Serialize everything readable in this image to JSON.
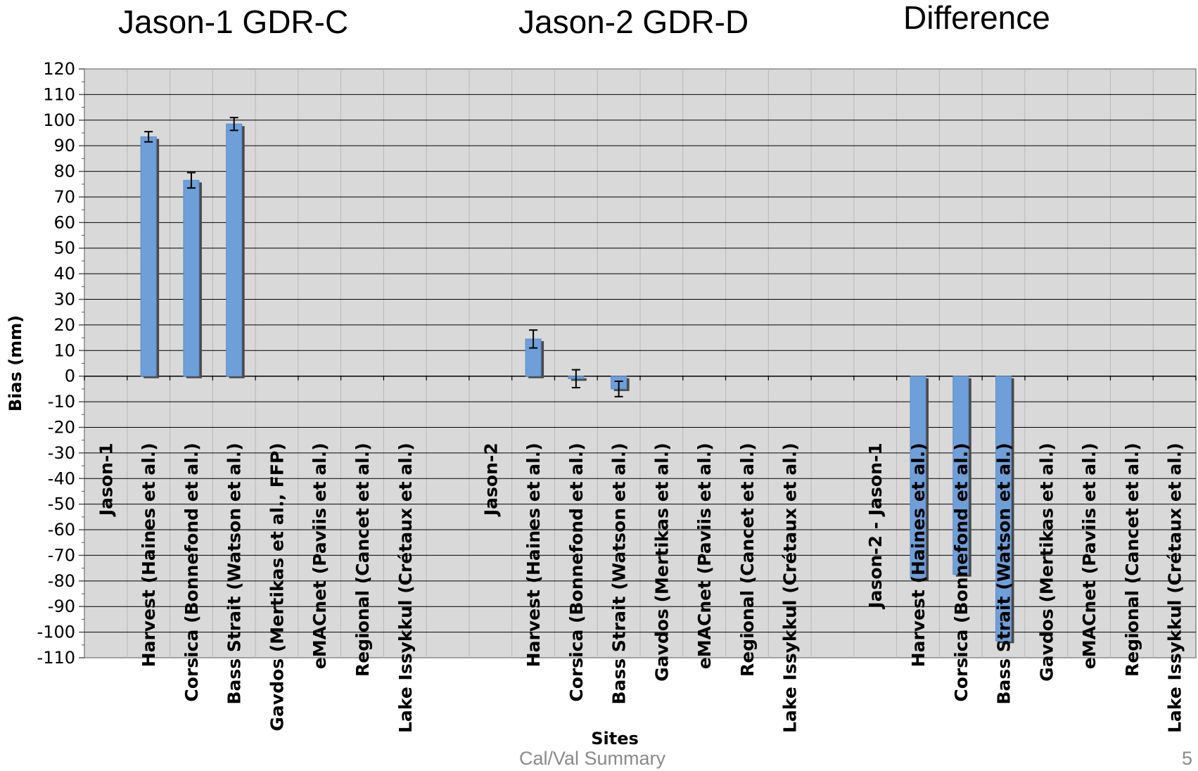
{
  "headings": {
    "jason1": "Jason-1 GDR-C",
    "jason2": "Jason-2 GDR-D",
    "difference": "Difference"
  },
  "chart_data": {
    "type": "bar",
    "xlabel": "Sites",
    "ylabel": "Bias (mm)",
    "ylim": [
      -110,
      120
    ],
    "y_ticks": [
      120,
      110,
      100,
      90,
      80,
      70,
      60,
      50,
      40,
      30,
      20,
      10,
      0,
      -10,
      -20,
      -30,
      -40,
      -50,
      -60,
      -70,
      -80,
      -90,
      -100,
      -110
    ],
    "grid": true,
    "categories": [
      "Jason-1",
      "Harvest (Haines et al.)",
      "Corsica (Bonnefond et al.)",
      "Bass Strait (Watson et al.)",
      "Gavdos (Mertikas et al., FFP)",
      "eMACnet (Paviis et al.)",
      "Regional (Cancet et al.)",
      "Lake Issykkul (Crétaux et al.)",
      "",
      "Jason-2",
      "Harvest (Haines et al.)",
      "Corsica (Bonnefond et al.)",
      "Bass Strait (Watson et al.)",
      "Gavdos (Mertikas et al.)",
      "eMACnet (Paviis et al.)",
      "Regional (Cancet et al.)",
      "Lake Issykkul (Crétaux et al.)",
      "",
      "Jason-2 - Jason-1",
      "Harvest (Haines et al.)",
      "Corsica (Bonnefond et al.)",
      "Bass Strait (Watson et al.)",
      "Gavdos (Mertikas et al.)",
      "eMACnet (Paviis et al.)",
      "Regional (Cancet et al.)",
      "Lake Issykkul (Crétaux et al.)"
    ],
    "values": [
      null,
      93.5,
      76.5,
      98.5,
      null,
      null,
      null,
      null,
      null,
      null,
      14.5,
      -1.0,
      -5.0,
      null,
      null,
      null,
      null,
      null,
      null,
      -79.0,
      -77.5,
      -103.5,
      null,
      null,
      null,
      null
    ],
    "errors": [
      null,
      2.0,
      3.0,
      2.5,
      null,
      null,
      null,
      null,
      null,
      null,
      3.5,
      3.5,
      3.0,
      null,
      null,
      null,
      null,
      null,
      null,
      null,
      null,
      null,
      null,
      null,
      null,
      null
    ],
    "colors": {
      "bar": "#6f9fd8",
      "bar_shadow": "#4a4a4a",
      "plot_bg": "#d9d9d9",
      "grid": "#000000",
      "error_bar": "#000000"
    }
  },
  "footer": {
    "text": "Cal/Val Summary",
    "page_number": "5"
  }
}
